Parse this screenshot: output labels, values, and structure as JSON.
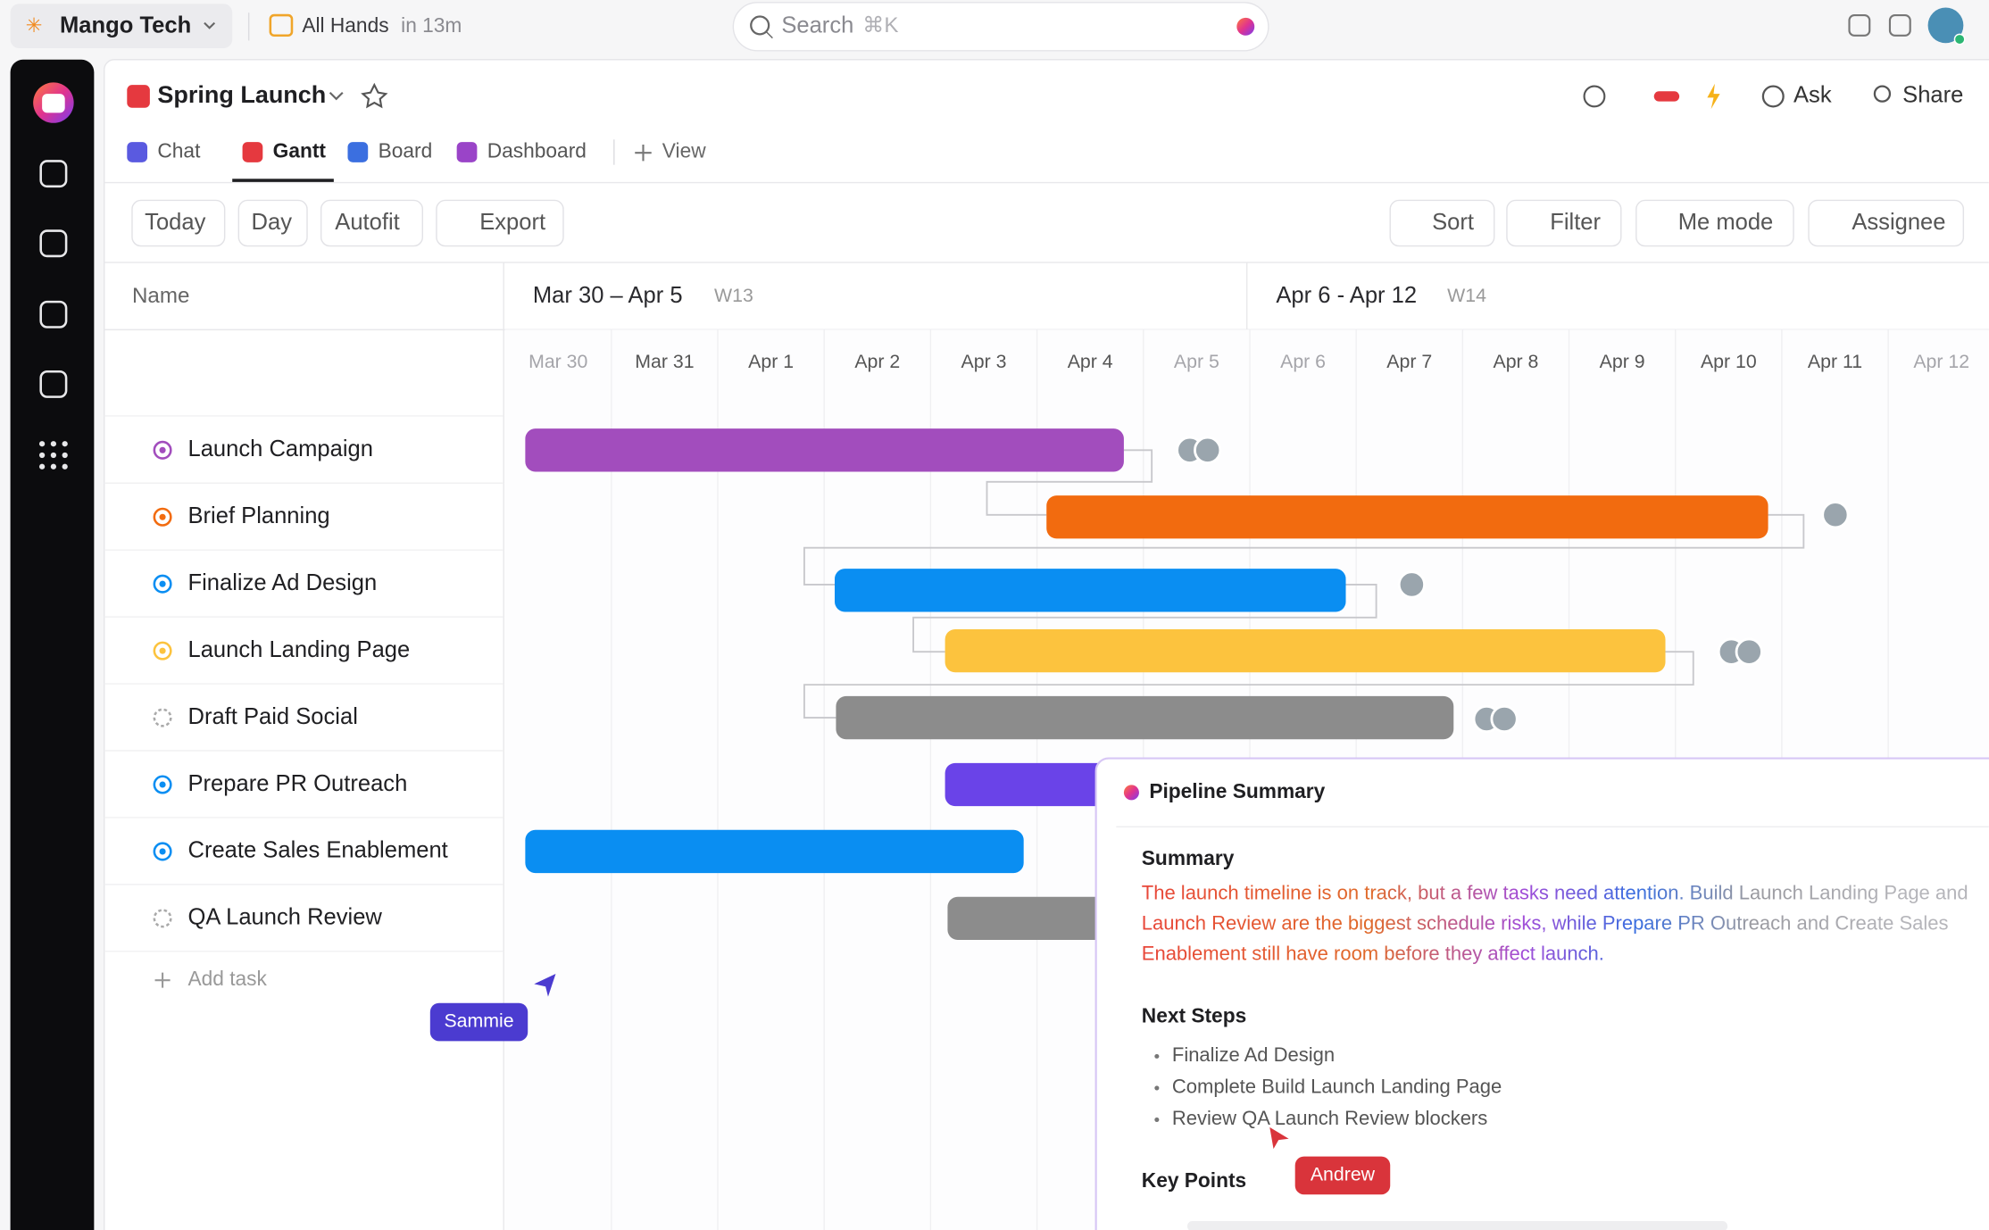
{
  "topbar": {
    "workspace": "Mango Tech",
    "event": "All Hands",
    "event_time": "in 13m",
    "search": "Search",
    "search_shortcut": "⌘K"
  },
  "project": {
    "title": "Spring Launch",
    "actions": [
      "Ask",
      "Share"
    ]
  },
  "tabs": [
    "Chat",
    "Gantt",
    "Board",
    "Dashboard",
    "View"
  ],
  "toolbar": {
    "left": [
      "Today",
      "Day",
      "Autofit",
      "Export"
    ],
    "right": [
      "Sort",
      "Filter",
      "Me mode",
      "Assignee"
    ]
  },
  "gantt": {
    "name_header": "Name",
    "weeks": [
      {
        "range": "Mar 30 – Apr 5",
        "week": "W13"
      },
      {
        "range": "Apr 6 - Apr 12",
        "week": "W14"
      }
    ],
    "days": [
      "Mar 30",
      "Mar 31",
      "Apr 1",
      "Apr 2",
      "Apr 3",
      "Apr 4",
      "Apr 5",
      "Apr 6",
      "Apr 7",
      "Apr 8",
      "Apr 9",
      "Apr 10",
      "Apr 11",
      "Apr 12"
    ],
    "tasks": [
      "Launch Campaign",
      "Brief Planning",
      "Finalize Ad Design",
      "Launch Landing Page",
      "Draft Paid Social",
      "Prepare PR Outreach",
      "Create Sales Enablement",
      "QA Launch Review"
    ],
    "add_task": "Add task"
  },
  "cursors": [
    "Sammie",
    "Andrew"
  ],
  "summary_panel": {
    "title": "Pipeline Summary",
    "summary_heading": "Summary",
    "summary_lines": [
      "The launch timeline is on track, but a few tasks need attention. Build Launch Landing Page and",
      "Launch Review are the biggest schedule risks, while Prepare PR Outreach and Create Sales",
      "Enablement still have room before they affect launch."
    ],
    "next_steps_heading": "Next Steps",
    "next_steps": [
      "Finalize Ad Design",
      "Complete Build Launch Landing Page",
      "Review QA Launch Review blockers"
    ],
    "key_points_heading": "Key Points"
  }
}
